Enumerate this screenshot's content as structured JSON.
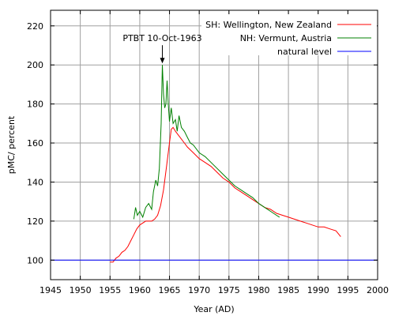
{
  "chart_data": {
    "type": "line",
    "title": "",
    "xlabel": "Year (AD)",
    "ylabel": "pMC/ percent",
    "xlim": [
      1945,
      2000
    ],
    "ylim": [
      90,
      228
    ],
    "xticks": [
      1945,
      1950,
      1955,
      1960,
      1965,
      1970,
      1975,
      1980,
      1985,
      1990,
      1995,
      2000
    ],
    "yticks": [
      100,
      120,
      140,
      160,
      180,
      200,
      220
    ],
    "grid": true,
    "legend_position": "top-right",
    "series": [
      {
        "name": "SH: Wellington, New Zealand",
        "color": "#ff0000",
        "x": [
          1955.0,
          1955.5,
          1956.0,
          1956.5,
          1957.0,
          1957.5,
          1958.0,
          1958.5,
          1959.0,
          1959.5,
          1960.0,
          1960.5,
          1961.0,
          1961.5,
          1962.0,
          1962.5,
          1963.0,
          1963.5,
          1964.0,
          1964.5,
          1965.0,
          1965.3,
          1965.6,
          1966.0,
          1966.5,
          1967.0,
          1967.5,
          1968.0,
          1969.0,
          1970.0,
          1971.0,
          1972.0,
          1973.0,
          1974.0,
          1975.0,
          1976.0,
          1977.0,
          1978.0,
          1979.0,
          1980.0,
          1981.0,
          1982.0,
          1983.0,
          1984.0,
          1985.0,
          1986.0,
          1987.0,
          1988.0,
          1989.0,
          1990.0,
          1991.0,
          1992.0,
          1993.0,
          1993.8
        ],
        "y": [
          99,
          99,
          101,
          102,
          104,
          105,
          107,
          110,
          113,
          116,
          118,
          119,
          120,
          120,
          120,
          121,
          123,
          128,
          136,
          148,
          160,
          167,
          168,
          166,
          164,
          162,
          160,
          158,
          155,
          152,
          150,
          148,
          145,
          142,
          140,
          137,
          135,
          133,
          131,
          129,
          127,
          126,
          124,
          123,
          122,
          121,
          120,
          119,
          118,
          117,
          117,
          116,
          115,
          112
        ]
      },
      {
        "name": "NH: Vermunt, Austria",
        "color": "#008000",
        "x": [
          1959.0,
          1959.3,
          1959.6,
          1960.0,
          1960.5,
          1961.0,
          1961.5,
          1962.0,
          1962.3,
          1962.7,
          1963.0,
          1963.3,
          1963.6,
          1963.8,
          1964.0,
          1964.2,
          1964.4,
          1964.6,
          1964.8,
          1965.0,
          1965.3,
          1965.6,
          1966.0,
          1966.3,
          1966.6,
          1967.0,
          1967.5,
          1968.0,
          1968.5,
          1969.0,
          1970.0,
          1971.0,
          1972.0,
          1973.0,
          1974.0,
          1975.0,
          1976.0,
          1977.0,
          1978.0,
          1979.0,
          1980.0,
          1981.0,
          1982.0,
          1983.0,
          1983.5
        ],
        "y": [
          121,
          127,
          123,
          125,
          122,
          127,
          129,
          126,
          135,
          141,
          138,
          147,
          170,
          200,
          185,
          178,
          180,
          192,
          180,
          171,
          178,
          170,
          172,
          166,
          174,
          168,
          166,
          163,
          160,
          159,
          155,
          153,
          150,
          147,
          144,
          141,
          138,
          136,
          134,
          132,
          129,
          127,
          125,
          123,
          122
        ]
      },
      {
        "name": "natural level",
        "color": "#0000ff",
        "x": [
          1945,
          2000
        ],
        "y": [
          100,
          100
        ]
      }
    ],
    "annotations": [
      {
        "text": "PTBT 10-Oct-1963",
        "x": 1963.8,
        "y": 200,
        "arrow": true
      }
    ]
  }
}
